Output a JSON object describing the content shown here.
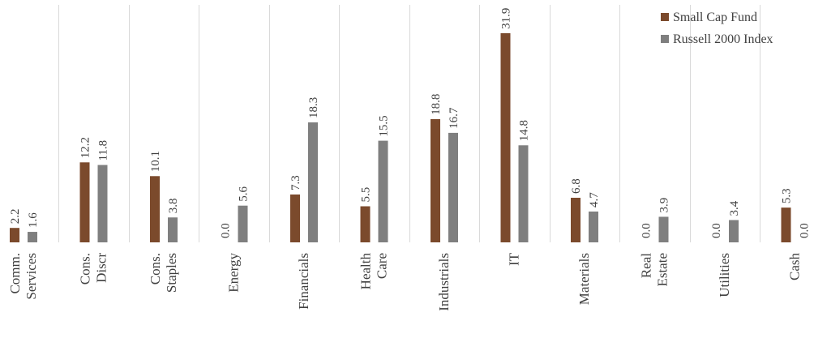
{
  "chart_data": {
    "type": "bar",
    "categories": [
      [
        "Comm.",
        "Services"
      ],
      [
        "Cons.",
        "Discr"
      ],
      [
        "Cons.",
        "Staples"
      ],
      [
        "Energy"
      ],
      [
        "Financials"
      ],
      [
        "Health",
        "Care"
      ],
      [
        "Industrials"
      ],
      [
        "IT"
      ],
      [
        "Materials"
      ],
      [
        "Real",
        "Estate"
      ],
      [
        "Utilities"
      ],
      [
        "Cash"
      ]
    ],
    "series": [
      {
        "name": "Small Cap Fund",
        "color": "#7B4A2C",
        "values": [
          2.2,
          12.2,
          10.1,
          0.0,
          7.3,
          5.5,
          18.8,
          31.9,
          6.8,
          0.0,
          0.0,
          5.3
        ],
        "labels": [
          "2.2",
          "12.2",
          "10.1",
          "0.0",
          "7.3",
          "5.5",
          "18.8",
          "31.9",
          "6.8",
          "0.0",
          "0.0",
          "5.3"
        ]
      },
      {
        "name": "Russell 2000 Index",
        "color": "#7F7F7F",
        "values": [
          1.6,
          11.8,
          3.8,
          5.6,
          18.3,
          15.5,
          16.7,
          14.8,
          4.7,
          3.9,
          3.4,
          0.0
        ],
        "labels": [
          "1.6",
          "11.8",
          "3.8",
          "5.6",
          "18.3",
          "15.5",
          "16.7",
          "14.8",
          "4.7",
          "3.9",
          "3.4",
          "0.0"
        ]
      }
    ],
    "ylim": [
      0,
      32
    ],
    "grid": "vertical separators between categories",
    "legend": "top-right",
    "title": "",
    "xlabel": "",
    "ylabel": ""
  }
}
